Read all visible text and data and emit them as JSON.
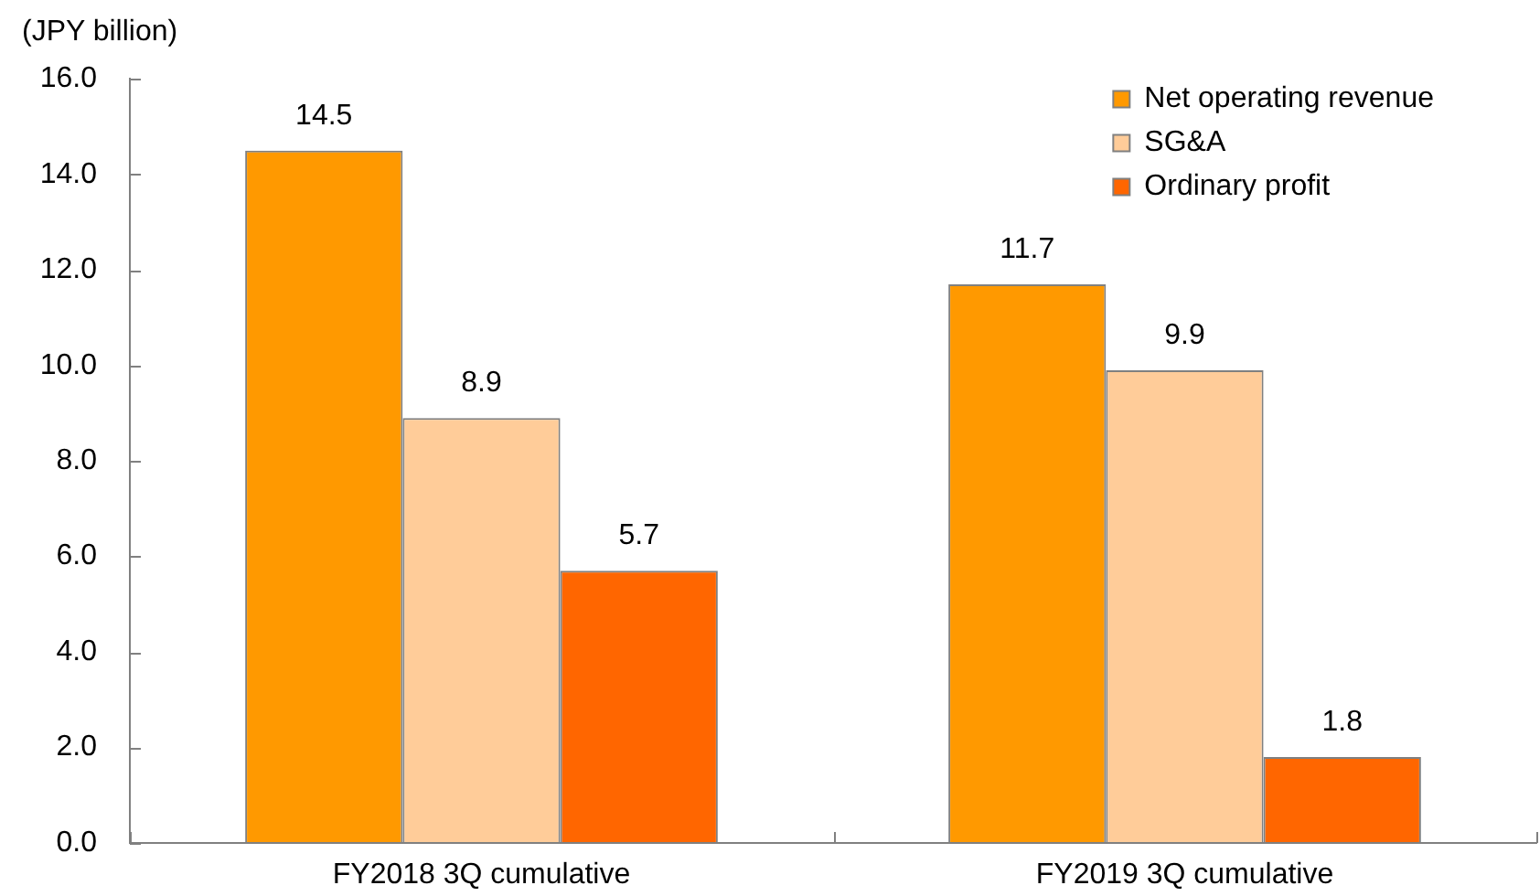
{
  "chart_data": {
    "type": "bar",
    "ylabel": "(JPY billion)",
    "categories": [
      "FY2018 3Q cumulative",
      "FY2019 3Q cumulative"
    ],
    "series": [
      {
        "name": "Net operating revenue",
        "color": "#ff9900",
        "values": [
          14.5,
          11.7
        ]
      },
      {
        "name": "SG&A",
        "color": "#ffcc99",
        "values": [
          8.9,
          9.9
        ]
      },
      {
        "name": "Ordinary profit",
        "color": "#ff6600",
        "values": [
          5.7,
          1.8
        ]
      }
    ],
    "ylim": [
      0,
      16
    ],
    "yticks": [
      {
        "value": 0,
        "label": "0.0"
      },
      {
        "value": 2,
        "label": "2.0"
      },
      {
        "value": 4,
        "label": "4.0"
      },
      {
        "value": 6,
        "label": "6.0"
      },
      {
        "value": 8,
        "label": "8.0"
      },
      {
        "value": 10,
        "label": "10.0"
      },
      {
        "value": 12,
        "label": "12.0"
      },
      {
        "value": 14,
        "label": "14.0"
      },
      {
        "value": 16,
        "label": "16.0"
      }
    ],
    "data_labels": true,
    "legend": "top right",
    "grid": false
  }
}
